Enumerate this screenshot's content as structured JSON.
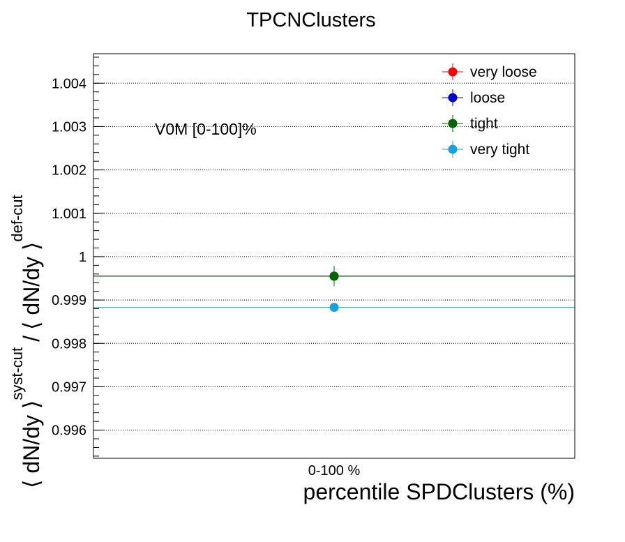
{
  "chart_data": {
    "type": "scatter",
    "title": "TPCNClusters",
    "xlabel": "percentile SPDClusters (%)",
    "ylabel": {
      "main": "⟨ dN/dy ⟩",
      "sup1": "syst-cut",
      "sep": "/",
      "main2": "⟨ dN/dy ⟩",
      "sup2": "def-cut"
    },
    "annotation": "V0M [0-100]%",
    "categories": [
      "0-100 %"
    ],
    "ylim": [
      0.99535,
      1.00468
    ],
    "yticks": [
      0.996,
      0.997,
      0.998,
      0.999,
      1,
      1.001,
      1.002,
      1.003,
      1.004
    ],
    "ytick_labels": [
      "0.996",
      "0.997",
      "0.998",
      "0.999",
      "1",
      "1.001",
      "1.002",
      "1.003",
      "1.004"
    ],
    "grid": true,
    "legend_position": "top-right",
    "series": [
      {
        "name": "very loose",
        "color": "#ff0000",
        "values": [
          0.99955
        ],
        "err": [
          0.00023
        ]
      },
      {
        "name": "loose",
        "color": "#0000cc",
        "values": [
          0.99955
        ],
        "err": [
          0.00023
        ]
      },
      {
        "name": "tight",
        "color": "#006400",
        "values": [
          0.99955
        ],
        "err": [
          0.00023
        ]
      },
      {
        "name": "very tight",
        "color": "#1aa0dc",
        "values": [
          0.99883
        ],
        "err": [
          0.0001
        ]
      }
    ]
  }
}
